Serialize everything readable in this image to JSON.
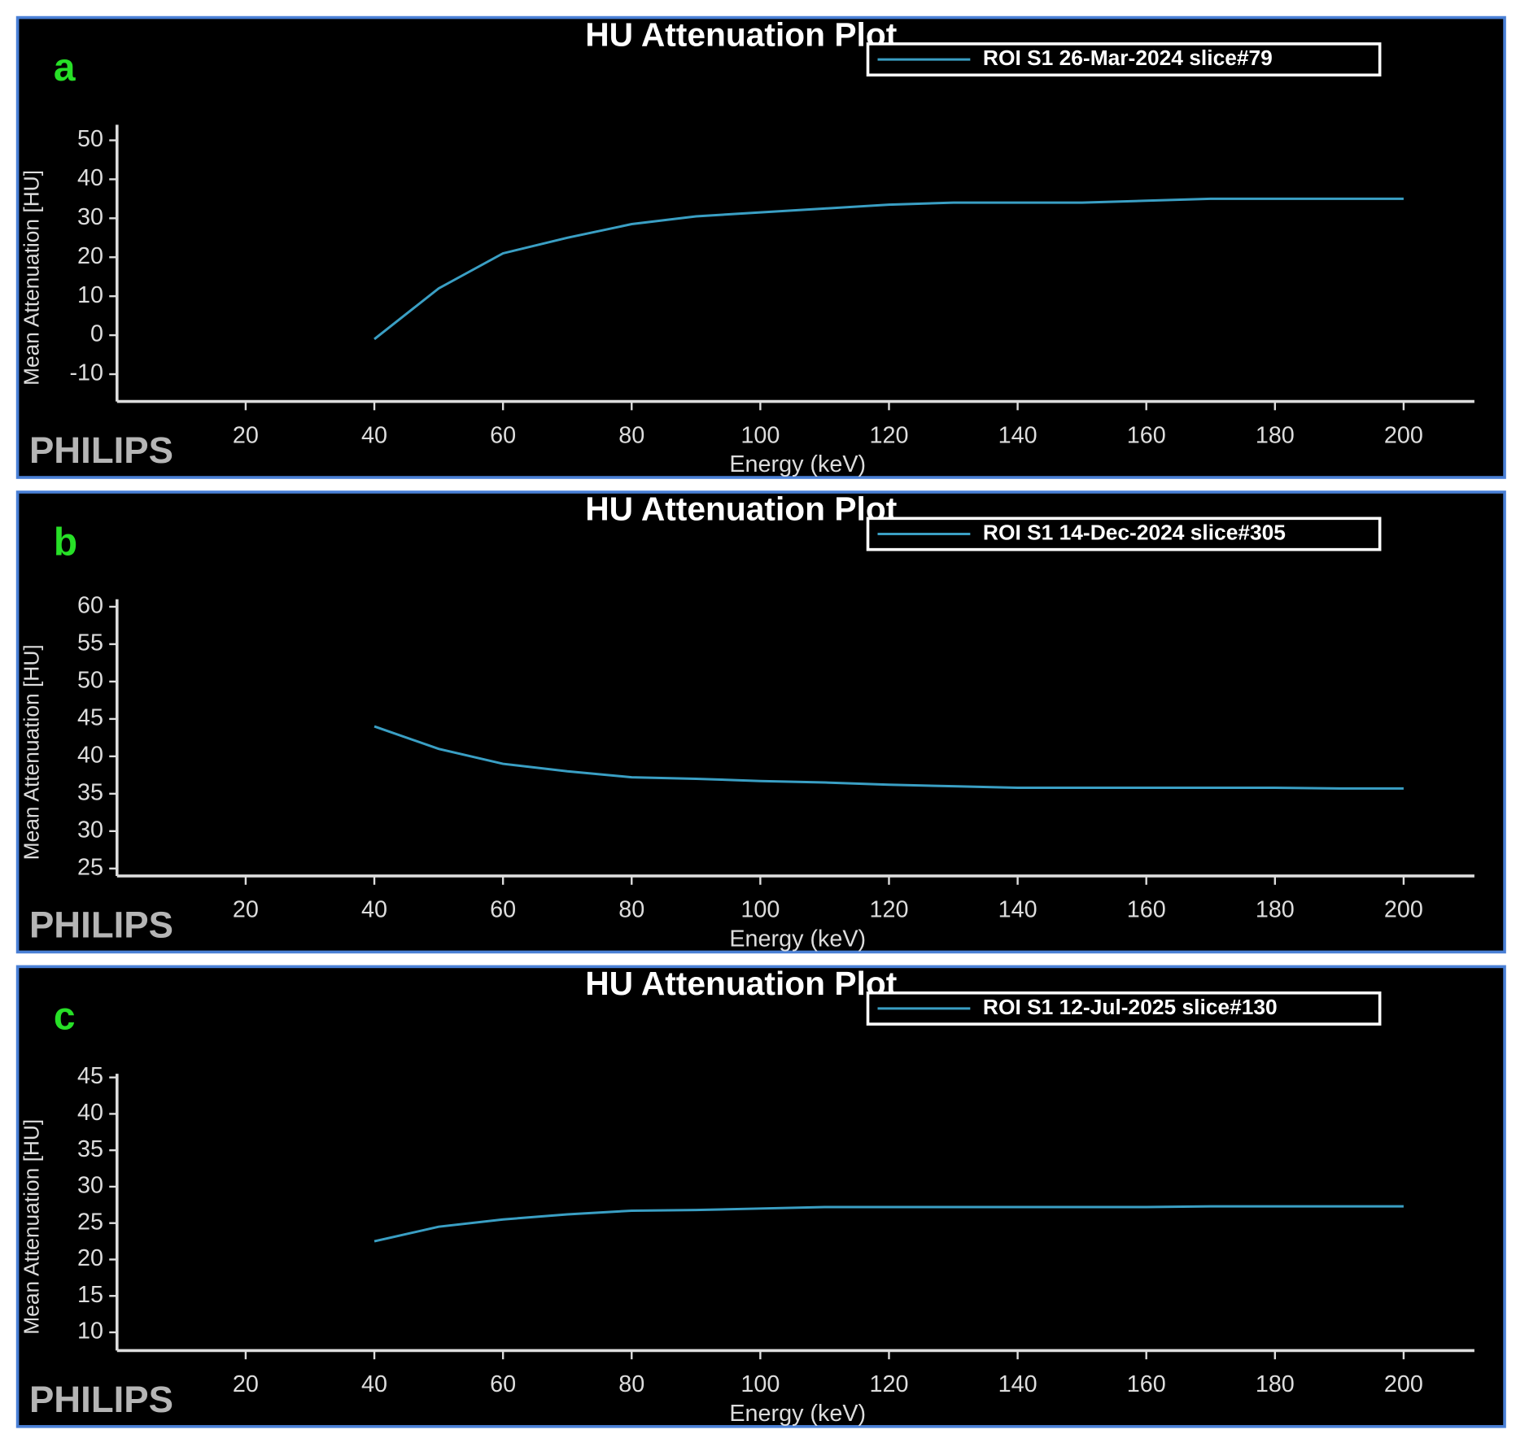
{
  "chart_data": [
    {
      "type": "line",
      "title": "HU Attenuation Plot",
      "panel_label": "a",
      "watermark": "PHILIPS",
      "x_label": "Energy (keV)",
      "y_label": "Mean Attenuation [HU]",
      "x": [
        40,
        50,
        60,
        70,
        80,
        90,
        100,
        110,
        120,
        130,
        140,
        150,
        160,
        170,
        180,
        190,
        200
      ],
      "series": [
        {
          "name": "ROI S1 26-Mar-2024 slice#79",
          "color": "#3a9fc4",
          "values": [
            -1,
            12,
            21,
            25,
            28.5,
            30.5,
            31.5,
            32.5,
            33.5,
            34,
            34,
            34,
            34.5,
            35,
            35,
            35,
            35
          ]
        }
      ],
      "xlim": [
        0,
        211
      ],
      "xticks": [
        20,
        40,
        60,
        80,
        100,
        120,
        140,
        160,
        180,
        200
      ],
      "ylim": [
        -17,
        54
      ],
      "yticks": [
        -10,
        0,
        10,
        20,
        30,
        40,
        50
      ]
    },
    {
      "type": "line",
      "title": "HU Attenuation Plot",
      "panel_label": "b",
      "watermark": "PHILIPS",
      "x_label": "Energy (keV)",
      "y_label": "Mean Attenuation [HU]",
      "x": [
        40,
        50,
        60,
        70,
        80,
        90,
        100,
        110,
        120,
        130,
        140,
        150,
        160,
        170,
        180,
        190,
        200
      ],
      "series": [
        {
          "name": "ROI S1 14-Dec-2024 slice#305",
          "color": "#3a9fc4",
          "values": [
            44,
            41,
            39,
            38,
            37.2,
            37,
            36.7,
            36.5,
            36.2,
            36,
            35.8,
            35.8,
            35.8,
            35.8,
            35.8,
            35.7,
            35.7
          ]
        }
      ],
      "xlim": [
        0,
        211
      ],
      "xticks": [
        20,
        40,
        60,
        80,
        100,
        120,
        140,
        160,
        180,
        200
      ],
      "ylim": [
        24,
        61
      ],
      "yticks": [
        25,
        30,
        35,
        40,
        45,
        50,
        55,
        60
      ]
    },
    {
      "type": "line",
      "title": "HU Attenuation Plot",
      "panel_label": "c",
      "watermark": "PHILIPS",
      "x_label": "Energy (keV)",
      "y_label": "Mean Attenuation [HU]",
      "x": [
        40,
        50,
        60,
        70,
        80,
        90,
        100,
        110,
        120,
        130,
        140,
        150,
        160,
        170,
        180,
        190,
        200
      ],
      "series": [
        {
          "name": "ROI S1 12-Jul-2025 slice#130",
          "color": "#3a9fc4",
          "values": [
            22.5,
            24.5,
            25.5,
            26.2,
            26.7,
            26.8,
            27,
            27.2,
            27.2,
            27.2,
            27.2,
            27.2,
            27.2,
            27.3,
            27.3,
            27.3,
            27.3
          ]
        }
      ],
      "xlim": [
        0,
        211
      ],
      "xticks": [
        20,
        40,
        60,
        80,
        100,
        120,
        140,
        160,
        180,
        200
      ],
      "ylim": [
        7.5,
        45.5
      ],
      "yticks": [
        10,
        15,
        20,
        25,
        30,
        35,
        40,
        45
      ]
    }
  ]
}
